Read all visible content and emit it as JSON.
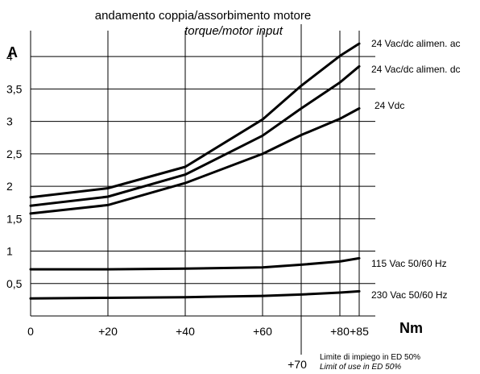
{
  "chart_data": {
    "type": "line",
    "title": "andamento coppia/assorbimento motore",
    "subtitle": "torque/motor input",
    "xlabel": "Nm",
    "ylabel": "A",
    "x_ticks": [
      "0",
      "+20",
      "+40",
      "+60",
      "+80",
      "+85"
    ],
    "y_ticks": [
      "0,5",
      "1",
      "1,5",
      "2",
      "2,5",
      "3",
      "3,5",
      "4"
    ],
    "xlim": [
      0,
      85
    ],
    "ylim": [
      0,
      4.4
    ],
    "grid": true,
    "series": [
      {
        "name": "24 Vac/dc alimen. ac",
        "x": [
          0,
          20,
          40,
          60,
          70,
          80,
          85
        ],
        "y": [
          1.83,
          1.97,
          2.3,
          3.03,
          3.55,
          4.01,
          4.2
        ]
      },
      {
        "name": "24 Vac/dc alimen. dc",
        "x": [
          0,
          20,
          40,
          60,
          70,
          80,
          85
        ],
        "y": [
          1.7,
          1.84,
          2.18,
          2.78,
          3.2,
          3.6,
          3.85
        ]
      },
      {
        "name": "24 Vdc",
        "x": [
          0,
          20,
          40,
          60,
          70,
          80,
          85
        ],
        "y": [
          1.58,
          1.71,
          2.05,
          2.5,
          2.79,
          3.04,
          3.2
        ]
      },
      {
        "name": "115 Vac 50/60 Hz",
        "x": [
          0,
          20,
          40,
          60,
          70,
          80,
          85
        ],
        "y": [
          0.72,
          0.72,
          0.73,
          0.75,
          0.79,
          0.84,
          0.89
        ]
      },
      {
        "name": "230 Vac 50/60 Hz",
        "x": [
          0,
          20,
          40,
          60,
          70,
          80,
          85
        ],
        "y": [
          0.27,
          0.28,
          0.29,
          0.31,
          0.33,
          0.36,
          0.38
        ]
      }
    ],
    "annotations": {
      "vline_x": 70,
      "vline_label": "+70",
      "note_it": "Limite di impiego in ED 50%",
      "note_en": "Limit of use in ED 50%"
    }
  }
}
